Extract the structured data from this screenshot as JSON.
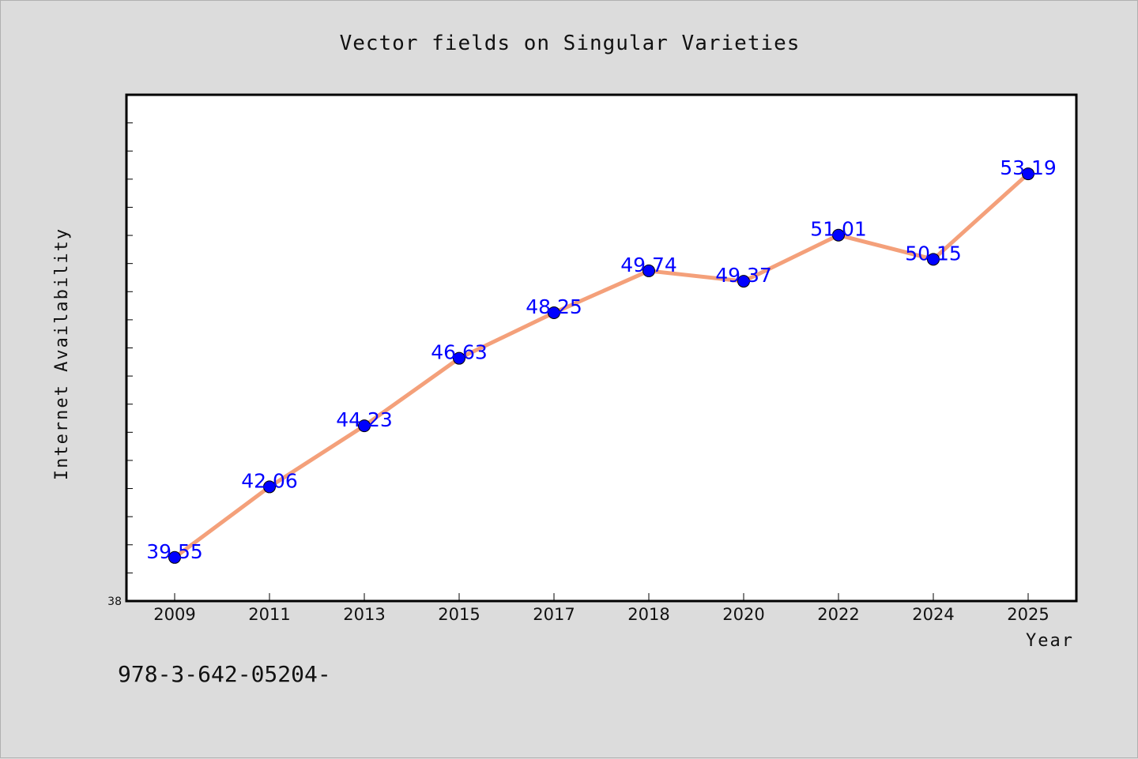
{
  "chart_data": {
    "type": "line",
    "title": "Vector fields on Singular Varieties",
    "xlabel": "Year",
    "ylabel": "Internet Availability",
    "categories": [
      "2009",
      "2011",
      "2013",
      "2015",
      "2017",
      "2018",
      "2020",
      "2022",
      "2024",
      "2025"
    ],
    "series": [
      {
        "values": [
          39.55,
          42.06,
          44.23,
          46.63,
          48.25,
          49.74,
          49.37,
          51.01,
          50.15,
          53.19
        ],
        "labels": [
          "39.55",
          "42.06",
          "44.23",
          "46.63",
          "48.25",
          "49.74",
          "49.37",
          "51.01",
          "50.15",
          "53.19"
        ],
        "line_color": "#f4a07a",
        "marker_color": "#0000ff"
      }
    ],
    "ylim": [
      38,
      56
    ],
    "yticks_labeled": [
      "38"
    ],
    "grid": false,
    "background": "#ffffff",
    "page_background": "#dcdcdc"
  },
  "footer": {
    "text": "978-3-642-05204-"
  }
}
